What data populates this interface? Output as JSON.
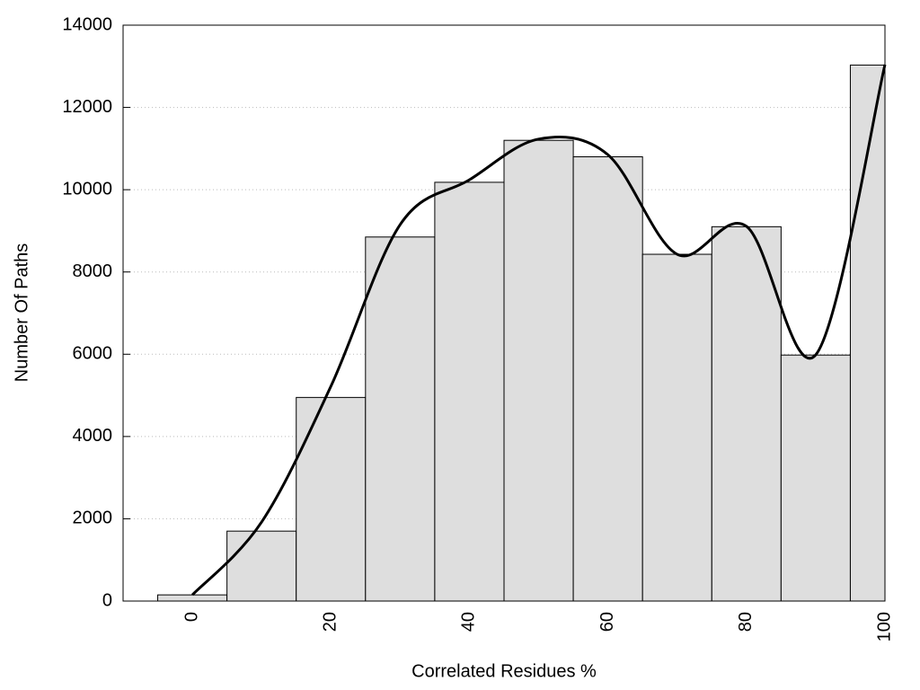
{
  "chart_data": {
    "type": "histogram",
    "xlabel": "Correlated Residues %",
    "ylabel": "Number Of Paths",
    "bins": [
      -5,
      5,
      15,
      25,
      35,
      45,
      55,
      65,
      75,
      85,
      95,
      100
    ],
    "values": [
      150,
      1700,
      4950,
      8850,
      10180,
      11200,
      10800,
      8430,
      9100,
      5980,
      13030
    ],
    "color": "#dedede",
    "line": {
      "x": [
        0,
        10,
        20,
        30,
        40,
        50,
        60,
        70,
        80,
        90,
        100
      ],
      "values": [
        150,
        1920,
        5220,
        9150,
        10240,
        11230,
        10850,
        8430,
        9110,
        5985,
        13040
      ],
      "color": "#000000"
    },
    "xlim": [
      -10,
      100
    ],
    "ylim": [
      0,
      14000
    ],
    "xticks": [
      0,
      20,
      40,
      60,
      80,
      100
    ],
    "yticks": [
      0,
      2000,
      4000,
      6000,
      8000,
      10000,
      12000,
      14000
    ],
    "grid": true
  }
}
